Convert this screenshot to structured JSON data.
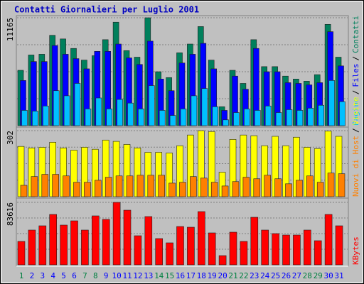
{
  "title": "Contatti Giornalieri per Luglio 2001",
  "legend_separator": "/",
  "categories": [
    "1",
    "2",
    "3",
    "4",
    "5",
    "6",
    "7",
    "8",
    "9",
    "10",
    "11",
    "12",
    "13",
    "14",
    "15",
    "16",
    "17",
    "18",
    "19",
    "20",
    "21",
    "22",
    "23",
    "24",
    "25",
    "26",
    "27",
    "28",
    "29",
    "30",
    "31"
  ],
  "category_colors": [
    "#008040",
    "#0000ff",
    "#0000ff",
    "#0000ff",
    "#0000ff",
    "#0000ff",
    "#008040",
    "#008040",
    "#0000ff",
    "#0000ff",
    "#0000ff",
    "#0000ff",
    "#0000ff",
    "#008040",
    "#008040",
    "#0000ff",
    "#0000ff",
    "#0000ff",
    "#0000ff",
    "#0000ff",
    "#008040",
    "#008040",
    "#0000ff",
    "#0000ff",
    "#0000ff",
    "#0000ff",
    "#0000ff",
    "#008040",
    "#008040",
    "#0000ff",
    "#0000ff"
  ],
  "chart_data": [
    {
      "type": "bar",
      "ylim": [
        0,
        11165
      ],
      "yticks": [
        11165
      ],
      "grid": true,
      "series": [
        {
          "name": "Contatti",
          "color": "#00805c",
          "values": [
            5730,
            7314,
            7389,
            9350,
            8973,
            7992,
            6786,
            7238,
            8897,
            10707,
            7766,
            7088,
            11165,
            5580,
            4976,
            7540,
            8445,
            10254,
            6786,
            1960,
            5730,
            4373,
            8897,
            6107,
            6107,
            5127,
            4826,
            4600,
            5278,
            10481,
            7088
          ]
        },
        {
          "name": "Files",
          "color": "#0000ff",
          "values": [
            4675,
            6635,
            6635,
            8294,
            7389,
            6937,
            5881,
            7691,
            7691,
            8445,
            7012,
            6334,
            8746,
            4826,
            3619,
            6484,
            7389,
            8520,
            5881,
            1583,
            5127,
            3770,
            7992,
            5580,
            5580,
            4449,
            4373,
            4222,
            4449,
            9727,
            6183
          ]
        },
        {
          "name": "Pagine",
          "color": "#00c0ff",
          "values": [
            1583,
            1508,
            2036,
            3619,
            3091,
            4373,
            1734,
            2865,
            1734,
            2714,
            2337,
            1734,
            4147,
            1583,
            1056,
            1734,
            3091,
            3845,
            1960,
            603,
            1357,
            1734,
            1583,
            2036,
            1357,
            1659,
            1583,
            1810,
            2111,
            4675,
            2488
          ]
        }
      ]
    },
    {
      "type": "bar",
      "ylim": [
        0,
        302
      ],
      "yticks": [
        302
      ],
      "grid": true,
      "series": [
        {
          "name": "Visite",
          "color": "#ffff00",
          "values": [
            230,
            223,
            226,
            249,
            223,
            213,
            226,
            217,
            259,
            253,
            239,
            223,
            203,
            203,
            200,
            233,
            282,
            302,
            298,
            112,
            262,
            282,
            279,
            233,
            276,
            233,
            272,
            226,
            220,
            300,
            276
          ]
        },
        {
          "name": "Nuovi di Host",
          "color": "#ff8000",
          "values": [
            52,
            92,
            102,
            102,
            95,
            66,
            66,
            75,
            89,
            95,
            95,
            98,
            98,
            98,
            62,
            66,
            92,
            85,
            66,
            49,
            69,
            89,
            82,
            98,
            82,
            59,
            75,
            95,
            66,
            108,
            105
          ]
        }
      ]
    },
    {
      "type": "bar",
      "ylim": [
        0,
        83616
      ],
      "yticks": [
        83616
      ],
      "grid": true,
      "series": [
        {
          "name": "KBytes",
          "color": "#ff0000",
          "values": [
            31350,
            46550,
            52250,
            67450,
            53200,
            58900,
            46550,
            65550,
            60800,
            83616,
            73150,
            38950,
            64600,
            35150,
            29450,
            51300,
            50350,
            71250,
            42750,
            12350,
            43700,
            31350,
            63650,
            46550,
            41800,
            39900,
            39900,
            46550,
            32300,
            67450,
            52250
          ]
        }
      ]
    }
  ]
}
